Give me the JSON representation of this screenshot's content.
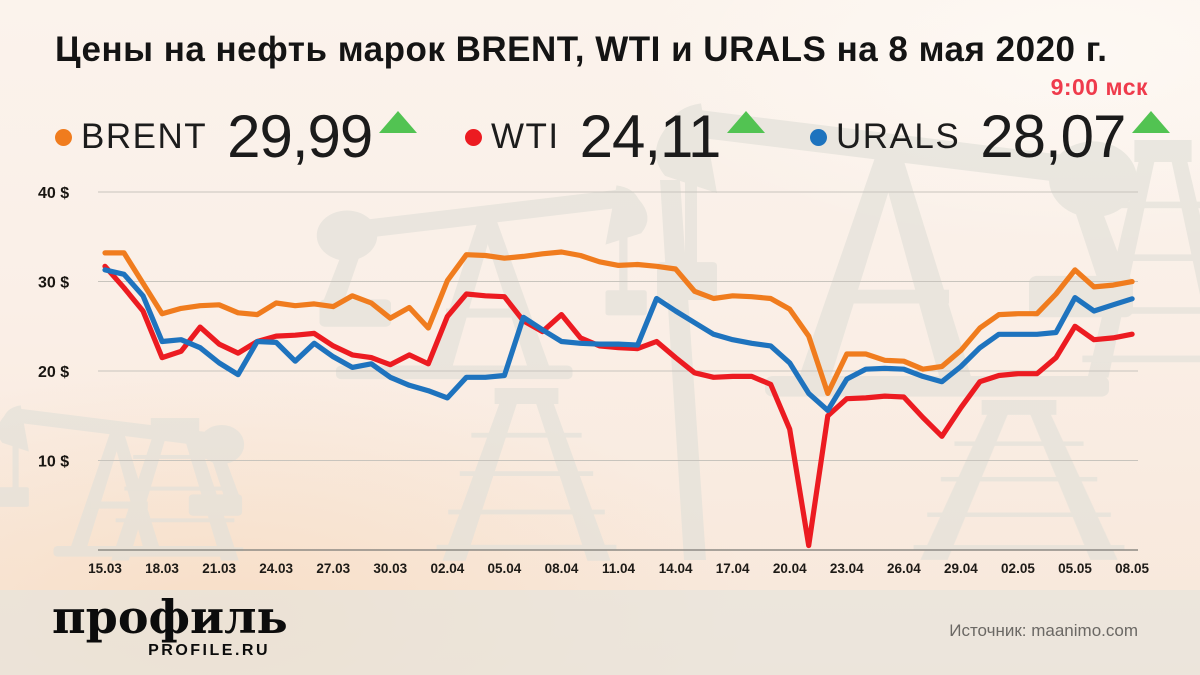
{
  "header": {
    "title": "Цены на нефть марок BRENT, WTI и URALS на 8 мая 2020 г.",
    "timestamp": "9:00 мск"
  },
  "legend": [
    {
      "label": "BRENT",
      "value": "29,99",
      "direction": "up"
    },
    {
      "label": "WTI",
      "value": "24,11",
      "direction": "up"
    },
    {
      "label": "URALS",
      "value": "28,07",
      "direction": "up"
    }
  ],
  "colors": {
    "brent": "#F07C1E",
    "wti": "#EC1B21",
    "urals": "#1E73BE",
    "up_arrow": "#52C352",
    "timestamp": "#EF3B4C",
    "grid": "#C8C4BD",
    "axis": "#8D8A84",
    "silhouette": "#E2E1D9"
  },
  "chart_data": {
    "type": "line",
    "title": "Цены на нефть марок BRENT, WTI и URALS на 8 мая 2020 г.",
    "x_tick_labels": [
      "15.03",
      "18.03",
      "21.03",
      "24.03",
      "27.03",
      "30.03",
      "02.04",
      "05.04",
      "08.04",
      "11.04",
      "14.04",
      "17.04",
      "20.04",
      "23.04",
      "26.04",
      "29.04",
      "02.05",
      "05.05",
      "08.05"
    ],
    "x_tick_every_n_points": 3,
    "ylim": [
      0,
      42
    ],
    "y_unit": "$",
    "grid": "horizontal",
    "legend_position": "top",
    "y_ticks": [
      {
        "value": 40,
        "label": "40 $"
      },
      {
        "value": 30,
        "label": "30 $"
      },
      {
        "value": 20,
        "label": "20 $"
      },
      {
        "value": 10,
        "label": "10 $"
      }
    ],
    "series": [
      {
        "name": "BRENT",
        "color": "#F07C1E",
        "last_value_label": "29,99",
        "values": [
          33.2,
          33.2,
          29.8,
          26.4,
          27.0,
          27.3,
          27.4,
          26.5,
          26.3,
          27.6,
          27.3,
          27.5,
          27.2,
          28.4,
          27.6,
          25.9,
          27.1,
          24.8,
          30.1,
          33.0,
          32.9,
          32.6,
          32.8,
          33.1,
          33.3,
          32.9,
          32.2,
          31.8,
          31.9,
          31.7,
          31.4,
          28.9,
          28.1,
          28.4,
          28.3,
          28.1,
          26.9,
          23.9,
          17.5,
          21.9,
          21.9,
          21.2,
          21.1,
          20.2,
          20.5,
          22.3,
          24.8,
          26.3,
          26.4,
          26.4,
          28.6,
          31.3,
          29.4,
          29.6,
          29.99
        ]
      },
      {
        "name": "WTI",
        "color": "#EC1B21",
        "last_value_label": "24,11",
        "values": [
          31.7,
          29.3,
          26.7,
          21.5,
          22.2,
          24.9,
          23.0,
          22.0,
          23.3,
          23.9,
          24.0,
          24.2,
          22.8,
          21.8,
          21.5,
          20.7,
          21.8,
          20.8,
          26.1,
          28.6,
          28.4,
          28.3,
          25.6,
          24.4,
          26.3,
          23.7,
          22.8,
          22.6,
          22.5,
          23.3,
          21.5,
          19.8,
          19.3,
          19.4,
          19.4,
          18.5,
          13.5,
          0.5,
          15.0,
          16.9,
          17.0,
          17.2,
          17.1,
          14.8,
          12.7,
          15.9,
          18.8,
          19.5,
          19.7,
          19.7,
          21.5,
          25.0,
          23.5,
          23.7,
          24.11
        ]
      },
      {
        "name": "URALS",
        "color": "#1E73BE",
        "last_value_label": "28,07",
        "values": [
          31.3,
          30.8,
          28.4,
          23.3,
          23.5,
          22.6,
          20.9,
          19.6,
          23.3,
          23.2,
          21.1,
          23.1,
          21.6,
          20.4,
          20.8,
          19.3,
          18.4,
          17.8,
          17.0,
          19.3,
          19.3,
          19.5,
          26.0,
          24.6,
          23.3,
          23.1,
          23.0,
          23.0,
          22.9,
          28.1,
          26.7,
          25.4,
          24.1,
          23.5,
          23.1,
          22.8,
          20.9,
          17.5,
          15.6,
          19.1,
          20.2,
          20.3,
          20.2,
          19.4,
          18.8,
          20.5,
          22.6,
          24.1,
          24.1,
          24.1,
          24.3,
          28.2,
          26.7,
          27.4,
          28.07
        ]
      }
    ]
  },
  "footer": {
    "logo_text": "профиль",
    "logo_sub": "PROFILE.RU",
    "source": "Источник: maanimo.com"
  }
}
